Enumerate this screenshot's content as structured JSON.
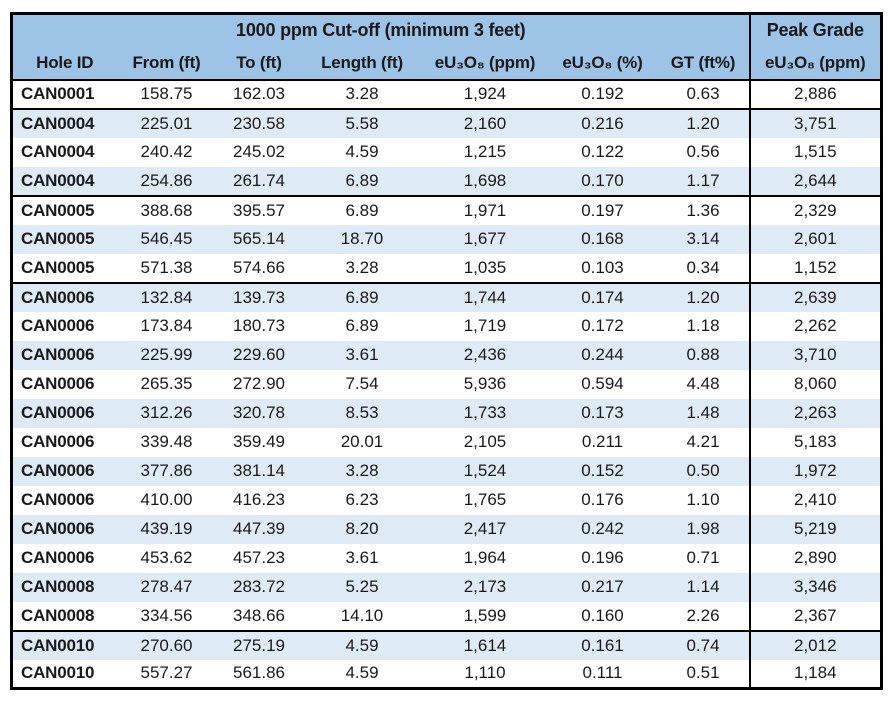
{
  "table": {
    "title": "1000 ppm Cut-off (minimum 3 feet)",
    "peak_grade_header": "Peak Grade",
    "columns": [
      "Hole ID",
      "From (ft)",
      "To (ft)",
      "Length (ft)",
      "eU₃O₈ (ppm)",
      "eU₃O₈ (%)",
      "GT (ft%)",
      "eU₃O₈ (ppm)"
    ],
    "rows": [
      [
        "CAN0001",
        "158.75",
        "162.03",
        "3.28",
        "1,924",
        "0.192",
        "0.63",
        "2,886"
      ],
      [
        "CAN0004",
        "225.01",
        "230.58",
        "5.58",
        "2,160",
        "0.216",
        "1.20",
        "3,751"
      ],
      [
        "CAN0004",
        "240.42",
        "245.02",
        "4.59",
        "1,215",
        "0.122",
        "0.56",
        "1,515"
      ],
      [
        "CAN0004",
        "254.86",
        "261.74",
        "6.89",
        "1,698",
        "0.170",
        "1.17",
        "2,644"
      ],
      [
        "CAN0005",
        "388.68",
        "395.57",
        "6.89",
        "1,971",
        "0.197",
        "1.36",
        "2,329"
      ],
      [
        "CAN0005",
        "546.45",
        "565.14",
        "18.70",
        "1,677",
        "0.168",
        "3.14",
        "2,601"
      ],
      [
        "CAN0005",
        "571.38",
        "574.66",
        "3.28",
        "1,035",
        "0.103",
        "0.34",
        "1,152"
      ],
      [
        "CAN0006",
        "132.84",
        "139.73",
        "6.89",
        "1,744",
        "0.174",
        "1.20",
        "2,639"
      ],
      [
        "CAN0006",
        "173.84",
        "180.73",
        "6.89",
        "1,719",
        "0.172",
        "1.18",
        "2,262"
      ],
      [
        "CAN0006",
        "225.99",
        "229.60",
        "3.61",
        "2,436",
        "0.244",
        "0.88",
        "3,710"
      ],
      [
        "CAN0006",
        "265.35",
        "272.90",
        "7.54",
        "5,936",
        "0.594",
        "4.48",
        "8,060"
      ],
      [
        "CAN0006",
        "312.26",
        "320.78",
        "8.53",
        "1,733",
        "0.173",
        "1.48",
        "2,263"
      ],
      [
        "CAN0006",
        "339.48",
        "359.49",
        "20.01",
        "2,105",
        "0.211",
        "4.21",
        "5,183"
      ],
      [
        "CAN0006",
        "377.86",
        "381.14",
        "3.28",
        "1,524",
        "0.152",
        "0.50",
        "1,972"
      ],
      [
        "CAN0006",
        "410.00",
        "416.23",
        "6.23",
        "1,765",
        "0.176",
        "1.10",
        "2,410"
      ],
      [
        "CAN0006",
        "439.19",
        "447.39",
        "8.20",
        "2,417",
        "0.242",
        "1.98",
        "5,219"
      ],
      [
        "CAN0006",
        "453.62",
        "457.23",
        "3.61",
        "1,964",
        "0.196",
        "0.71",
        "2,890"
      ],
      [
        "CAN0008",
        "278.47",
        "283.72",
        "5.25",
        "2,173",
        "0.217",
        "1.14",
        "3,346"
      ],
      [
        "CAN0008",
        "334.56",
        "348.66",
        "14.10",
        "1,599",
        "0.160",
        "2.26",
        "2,367"
      ],
      [
        "CAN0010",
        "270.60",
        "275.19",
        "4.59",
        "1,614",
        "0.161",
        "0.74",
        "2,012"
      ],
      [
        "CAN0010",
        "557.27",
        "561.86",
        "4.59",
        "1,110",
        "0.111",
        "0.51",
        "1,184"
      ]
    ],
    "group_separator_after_rows": [
      0,
      3,
      6,
      18
    ],
    "colors": {
      "header_bg": "#9DC3E6",
      "stripe_bg": "#DEEBF7",
      "border": "#000000"
    }
  }
}
